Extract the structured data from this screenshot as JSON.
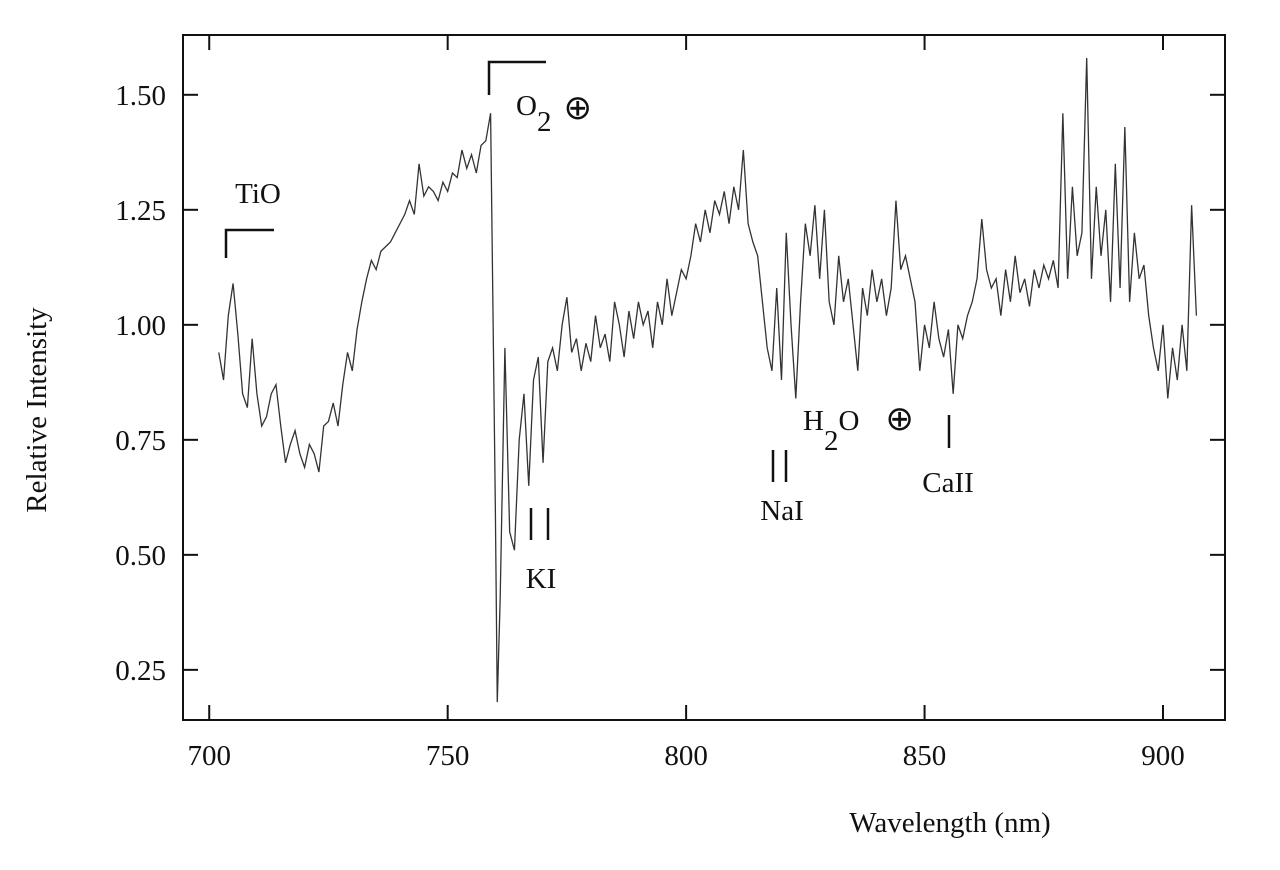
{
  "chart_data": {
    "type": "line",
    "xlabel": "Wavelength  (nm)",
    "ylabel": "Relative Intensity",
    "xlim": [
      694.5,
      913
    ],
    "ylim": [
      0.141,
      1.63
    ],
    "xticks": [
      700,
      750,
      800,
      850,
      900
    ],
    "yticks": [
      {
        "value": 0.25,
        "label": "0.25"
      },
      {
        "value": 0.5,
        "label": "0.50"
      },
      {
        "value": 0.75,
        "label": "0.75"
      },
      {
        "value": 1.0,
        "label": "1.00"
      },
      {
        "value": 1.25,
        "label": "1.25"
      },
      {
        "value": 1.5,
        "label": "1.50"
      }
    ],
    "annotations": [
      [
        "TiO"
      ],
      [
        "O",
        "2",
        "⊕"
      ],
      [
        "KI"
      ],
      [
        "NaI"
      ],
      [
        "H",
        "2",
        "O",
        "⊕"
      ],
      [
        "CaII"
      ]
    ],
    "series": [
      {
        "color": "#333333",
        "x": [
          702,
          703,
          704,
          705,
          706,
          707,
          708,
          709,
          710,
          711,
          712,
          713,
          714,
          715,
          716,
          717,
          718,
          719,
          720,
          721,
          722,
          723,
          724,
          725,
          726,
          727,
          728,
          729,
          730,
          731,
          732,
          733,
          734,
          735,
          736,
          737,
          738,
          739,
          740,
          741,
          742,
          743,
          744,
          745,
          746,
          747,
          748,
          749,
          750,
          751,
          752,
          753,
          754,
          755,
          756,
          757,
          758,
          759,
          760,
          760.4,
          761,
          762,
          763,
          764,
          765,
          766,
          767,
          768,
          769,
          770,
          771,
          772,
          773,
          774,
          775,
          776,
          777,
          778,
          779,
          780,
          781,
          782,
          783,
          784,
          785,
          786,
          787,
          788,
          789,
          790,
          791,
          792,
          793,
          794,
          795,
          796,
          797,
          798,
          799,
          800,
          801,
          802,
          803,
          804,
          805,
          806,
          807,
          808,
          809,
          810,
          811,
          812,
          813,
          814,
          815,
          816,
          817,
          818,
          819,
          820,
          821,
          822,
          823,
          824,
          825,
          826,
          827,
          828,
          829,
          830,
          831,
          832,
          833,
          834,
          835,
          836,
          837,
          838,
          839,
          840,
          841,
          842,
          843,
          844,
          845,
          846,
          847,
          848,
          849,
          850,
          851,
          852,
          853,
          854,
          855,
          856,
          857,
          858,
          859,
          860,
          861,
          862,
          863,
          864,
          865,
          866,
          867,
          868,
          869,
          870,
          871,
          872,
          873,
          874,
          875,
          876,
          877,
          878,
          879,
          880,
          881,
          882,
          883,
          884,
          885,
          886,
          887,
          888,
          889,
          890,
          891,
          892,
          893,
          894,
          895,
          896,
          897,
          898,
          899,
          900,
          901,
          902,
          903,
          904,
          905,
          906,
          907
        ],
        "values": [
          0.94,
          0.88,
          1.02,
          1.09,
          0.98,
          0.85,
          0.82,
          0.97,
          0.85,
          0.78,
          0.8,
          0.85,
          0.87,
          0.78,
          0.7,
          0.74,
          0.77,
          0.72,
          0.69,
          0.74,
          0.72,
          0.68,
          0.78,
          0.79,
          0.83,
          0.78,
          0.87,
          0.94,
          0.9,
          0.99,
          1.05,
          1.1,
          1.14,
          1.12,
          1.16,
          1.17,
          1.18,
          1.2,
          1.22,
          1.24,
          1.27,
          1.24,
          1.35,
          1.28,
          1.3,
          1.29,
          1.27,
          1.31,
          1.29,
          1.33,
          1.32,
          1.38,
          1.34,
          1.37,
          1.33,
          1.39,
          1.4,
          1.46,
          0.6,
          0.18,
          0.4,
          0.95,
          0.55,
          0.51,
          0.75,
          0.85,
          0.65,
          0.88,
          0.93,
          0.7,
          0.92,
          0.95,
          0.9,
          1.0,
          1.06,
          0.94,
          0.97,
          0.9,
          0.96,
          0.92,
          1.02,
          0.95,
          0.98,
          0.92,
          1.05,
          1.0,
          0.93,
          1.03,
          0.97,
          1.05,
          1.0,
          1.03,
          0.95,
          1.05,
          1.0,
          1.1,
          1.02,
          1.07,
          1.12,
          1.1,
          1.15,
          1.22,
          1.18,
          1.25,
          1.2,
          1.27,
          1.24,
          1.29,
          1.22,
          1.3,
          1.25,
          1.38,
          1.22,
          1.18,
          1.15,
          1.05,
          0.95,
          0.9,
          1.08,
          0.88,
          1.2,
          1.0,
          0.84,
          1.05,
          1.22,
          1.15,
          1.26,
          1.1,
          1.25,
          1.05,
          1.0,
          1.15,
          1.05,
          1.1,
          1.0,
          0.9,
          1.08,
          1.02,
          1.12,
          1.05,
          1.1,
          1.02,
          1.08,
          1.27,
          1.12,
          1.15,
          1.1,
          1.05,
          0.9,
          1.0,
          0.95,
          1.05,
          0.97,
          0.93,
          0.99,
          0.85,
          1.0,
          0.97,
          1.02,
          1.05,
          1.1,
          1.23,
          1.12,
          1.08,
          1.1,
          1.02,
          1.12,
          1.05,
          1.15,
          1.07,
          1.1,
          1.04,
          1.12,
          1.08,
          1.13,
          1.1,
          1.14,
          1.08,
          1.46,
          1.1,
          1.3,
          1.15,
          1.2,
          1.58,
          1.1,
          1.3,
          1.15,
          1.25,
          1.05,
          1.35,
          1.08,
          1.43,
          1.05,
          1.2,
          1.1,
          1.13,
          1.02,
          0.95,
          0.9,
          1.0,
          0.84,
          0.95,
          0.88,
          1.0,
          0.9,
          1.26,
          1.02
        ]
      }
    ]
  }
}
